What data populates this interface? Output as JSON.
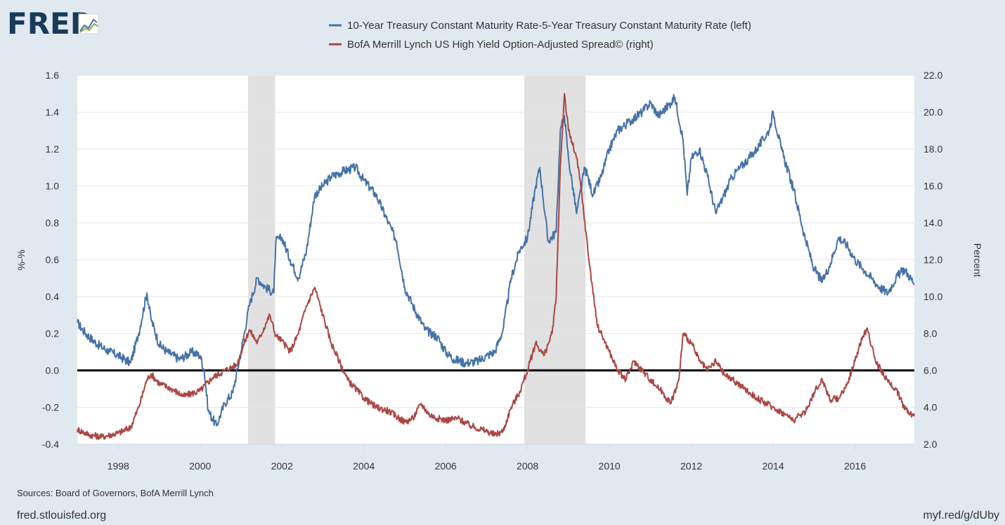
{
  "header": {
    "logo_text": "FRED",
    "logo_icon": "line-chart-icon"
  },
  "footer": {
    "sources": "Sources: Board of Governors, BofA Merrill Lynch",
    "site": "fred.stlouisfed.org",
    "short_link": "myf.red/g/dUby"
  },
  "colors": {
    "background": "#e1e9f0",
    "plot_background": "#ffffff",
    "series_left": "#4572a7",
    "series_right": "#aa4643",
    "recession": "#e1e1e1",
    "zero_line": "#000000",
    "logo": "#1a3a5c"
  },
  "chart_data": {
    "type": "line",
    "title": "",
    "xlabel": "",
    "ylabel_left": "%-%",
    "ylabel_right": "Percent",
    "xlim": [
      1997.0,
      2017.45
    ],
    "ylim_left": [
      -0.4,
      1.6
    ],
    "ylim_right": [
      2.0,
      22.0
    ],
    "x_ticks": [
      "1998",
      "2000",
      "2002",
      "2004",
      "2006",
      "2008",
      "2010",
      "2012",
      "2014",
      "2016"
    ],
    "y_left_ticks": [
      "-0.4",
      "-0.2",
      "0.0",
      "0.2",
      "0.4",
      "0.6",
      "0.8",
      "1.0",
      "1.2",
      "1.4",
      "1.6"
    ],
    "y_right_ticks": [
      "2.0",
      "4.0",
      "6.0",
      "8.0",
      "10.0",
      "12.0",
      "14.0",
      "16.0",
      "18.0",
      "20.0",
      "22.0"
    ],
    "grid": "horizontal",
    "legend_position": "top-center",
    "reference_line": {
      "axis": "left",
      "y": 0.0
    },
    "recessions": [
      [
        2001.17,
        2001.83
      ],
      [
        2007.92,
        2009.42
      ]
    ],
    "series": [
      {
        "name": "10-Year Treasury Constant Maturity Rate-5-Year Treasury Constant Maturity Rate (left)",
        "axis": "left",
        "x": [
          1997.0,
          1997.2,
          1997.5,
          1997.8,
          1998.0,
          1998.3,
          1998.5,
          1998.7,
          1998.8,
          1999.0,
          1999.2,
          1999.5,
          1999.8,
          2000.0,
          2000.1,
          2000.2,
          2000.4,
          2000.6,
          2000.8,
          2001.0,
          2001.2,
          2001.4,
          2001.6,
          2001.8,
          2001.85,
          2002.0,
          2002.2,
          2002.4,
          2002.6,
          2002.8,
          2003.0,
          2003.2,
          2003.5,
          2003.8,
          2004.0,
          2004.3,
          2004.6,
          2004.8,
          2005.0,
          2005.2,
          2005.5,
          2005.8,
          2006.0,
          2006.2,
          2006.5,
          2006.8,
          2007.0,
          2007.2,
          2007.4,
          2007.6,
          2007.8,
          2008.0,
          2008.2,
          2008.3,
          2008.5,
          2008.7,
          2008.8,
          2008.9,
          2009.0,
          2009.2,
          2009.4,
          2009.6,
          2009.8,
          2010.0,
          2010.2,
          2010.5,
          2010.8,
          2011.0,
          2011.2,
          2011.5,
          2011.6,
          2011.8,
          2011.9,
          2012.0,
          2012.2,
          2012.4,
          2012.6,
          2012.8,
          2013.0,
          2013.2,
          2013.4,
          2013.6,
          2013.9,
          2014.0,
          2014.2,
          2014.5,
          2014.8,
          2015.0,
          2015.2,
          2015.4,
          2015.6,
          2015.8,
          2016.0,
          2016.2,
          2016.4,
          2016.6,
          2016.8,
          2017.0,
          2017.2,
          2017.45
        ],
        "values": [
          0.26,
          0.2,
          0.14,
          0.1,
          0.08,
          0.04,
          0.2,
          0.42,
          0.28,
          0.14,
          0.1,
          0.06,
          0.1,
          0.08,
          0.0,
          -0.22,
          -0.3,
          -0.18,
          -0.12,
          0.1,
          0.35,
          0.5,
          0.45,
          0.42,
          0.7,
          0.72,
          0.6,
          0.5,
          0.65,
          0.95,
          1.0,
          1.05,
          1.08,
          1.1,
          1.03,
          0.95,
          0.8,
          0.7,
          0.45,
          0.35,
          0.22,
          0.18,
          0.1,
          0.06,
          0.04,
          0.05,
          0.08,
          0.1,
          0.22,
          0.5,
          0.65,
          0.72,
          1.0,
          1.1,
          0.7,
          0.75,
          1.3,
          1.38,
          1.15,
          0.85,
          1.1,
          0.95,
          1.05,
          1.2,
          1.3,
          1.35,
          1.4,
          1.45,
          1.38,
          1.45,
          1.48,
          1.25,
          0.95,
          1.15,
          1.2,
          1.05,
          0.85,
          0.95,
          1.05,
          1.1,
          1.15,
          1.2,
          1.3,
          1.4,
          1.2,
          0.98,
          0.7,
          0.55,
          0.48,
          0.58,
          0.72,
          0.68,
          0.6,
          0.55,
          0.5,
          0.45,
          0.42,
          0.5,
          0.55,
          0.47
        ]
      },
      {
        "name": "BofA Merrill Lynch US High Yield Option-Adjusted Spread© (right)",
        "axis": "right",
        "x": [
          1997.0,
          1997.3,
          1997.6,
          1998.0,
          1998.3,
          1998.5,
          1998.7,
          1998.8,
          1999.0,
          1999.3,
          1999.6,
          2000.0,
          2000.3,
          2000.6,
          2000.9,
          2001.0,
          2001.2,
          2001.4,
          2001.6,
          2001.7,
          2001.85,
          2002.0,
          2002.2,
          2002.4,
          2002.6,
          2002.8,
          2003.0,
          2003.2,
          2003.4,
          2003.6,
          2004.0,
          2004.3,
          2004.6,
          2005.0,
          2005.2,
          2005.4,
          2005.6,
          2005.8,
          2006.0,
          2006.3,
          2006.6,
          2007.0,
          2007.2,
          2007.4,
          2007.6,
          2007.8,
          2008.0,
          2008.2,
          2008.4,
          2008.6,
          2008.7,
          2008.8,
          2008.9,
          2009.0,
          2009.2,
          2009.3,
          2009.5,
          2009.7,
          2009.9,
          2010.0,
          2010.2,
          2010.4,
          2010.6,
          2010.8,
          2011.0,
          2011.3,
          2011.5,
          2011.7,
          2011.8,
          2012.0,
          2012.2,
          2012.4,
          2012.6,
          2012.8,
          2013.0,
          2013.3,
          2013.6,
          2014.0,
          2014.3,
          2014.5,
          2014.8,
          2015.0,
          2015.2,
          2015.4,
          2015.6,
          2015.8,
          2016.0,
          2016.1,
          2016.3,
          2016.5,
          2016.8,
          2017.0,
          2017.2,
          2017.45
        ],
        "values": [
          2.8,
          2.5,
          2.4,
          2.6,
          2.9,
          4.0,
          5.5,
          5.8,
          5.3,
          5.0,
          4.6,
          4.9,
          5.6,
          6.0,
          6.3,
          7.0,
          8.2,
          7.5,
          8.5,
          9.0,
          7.9,
          7.6,
          7.0,
          8.0,
          9.5,
          10.5,
          9.0,
          7.5,
          6.5,
          5.5,
          4.5,
          4.0,
          3.8,
          3.2,
          3.4,
          4.2,
          3.6,
          3.4,
          3.3,
          3.4,
          3.0,
          2.7,
          2.5,
          2.7,
          4.0,
          4.8,
          6.0,
          7.5,
          6.8,
          8.0,
          10.0,
          17.0,
          21.0,
          19.0,
          17.5,
          16.0,
          12.0,
          8.5,
          7.5,
          7.0,
          6.0,
          5.5,
          6.5,
          6.0,
          5.5,
          4.8,
          4.2,
          5.5,
          8.0,
          7.5,
          6.5,
          6.0,
          6.5,
          5.8,
          5.5,
          5.0,
          4.5,
          4.0,
          3.6,
          3.3,
          3.8,
          4.8,
          5.5,
          4.4,
          4.5,
          5.2,
          6.5,
          7.3,
          8.3,
          6.5,
          5.4,
          5.0,
          4.0,
          3.5
        ]
      }
    ]
  }
}
